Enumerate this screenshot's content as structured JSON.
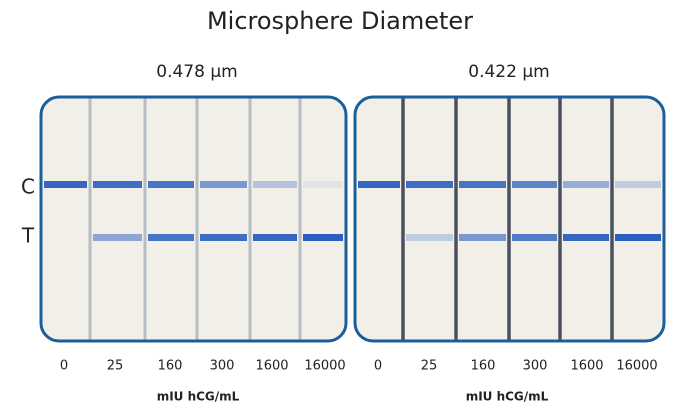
{
  "title": "Microsphere Diameter",
  "row_labels": [
    "C",
    "T"
  ],
  "panels": [
    {
      "label": "0.478 µm",
      "concentrations": [
        "0",
        "25",
        "160",
        "300",
        "1600",
        "16000"
      ],
      "unit": "mIU hCG/mL"
    },
    {
      "label": "0.422 µm",
      "concentrations": [
        "0",
        "25",
        "160",
        "300",
        "1600",
        "16000"
      ],
      "unit": "mIU hCG/mL"
    }
  ]
}
